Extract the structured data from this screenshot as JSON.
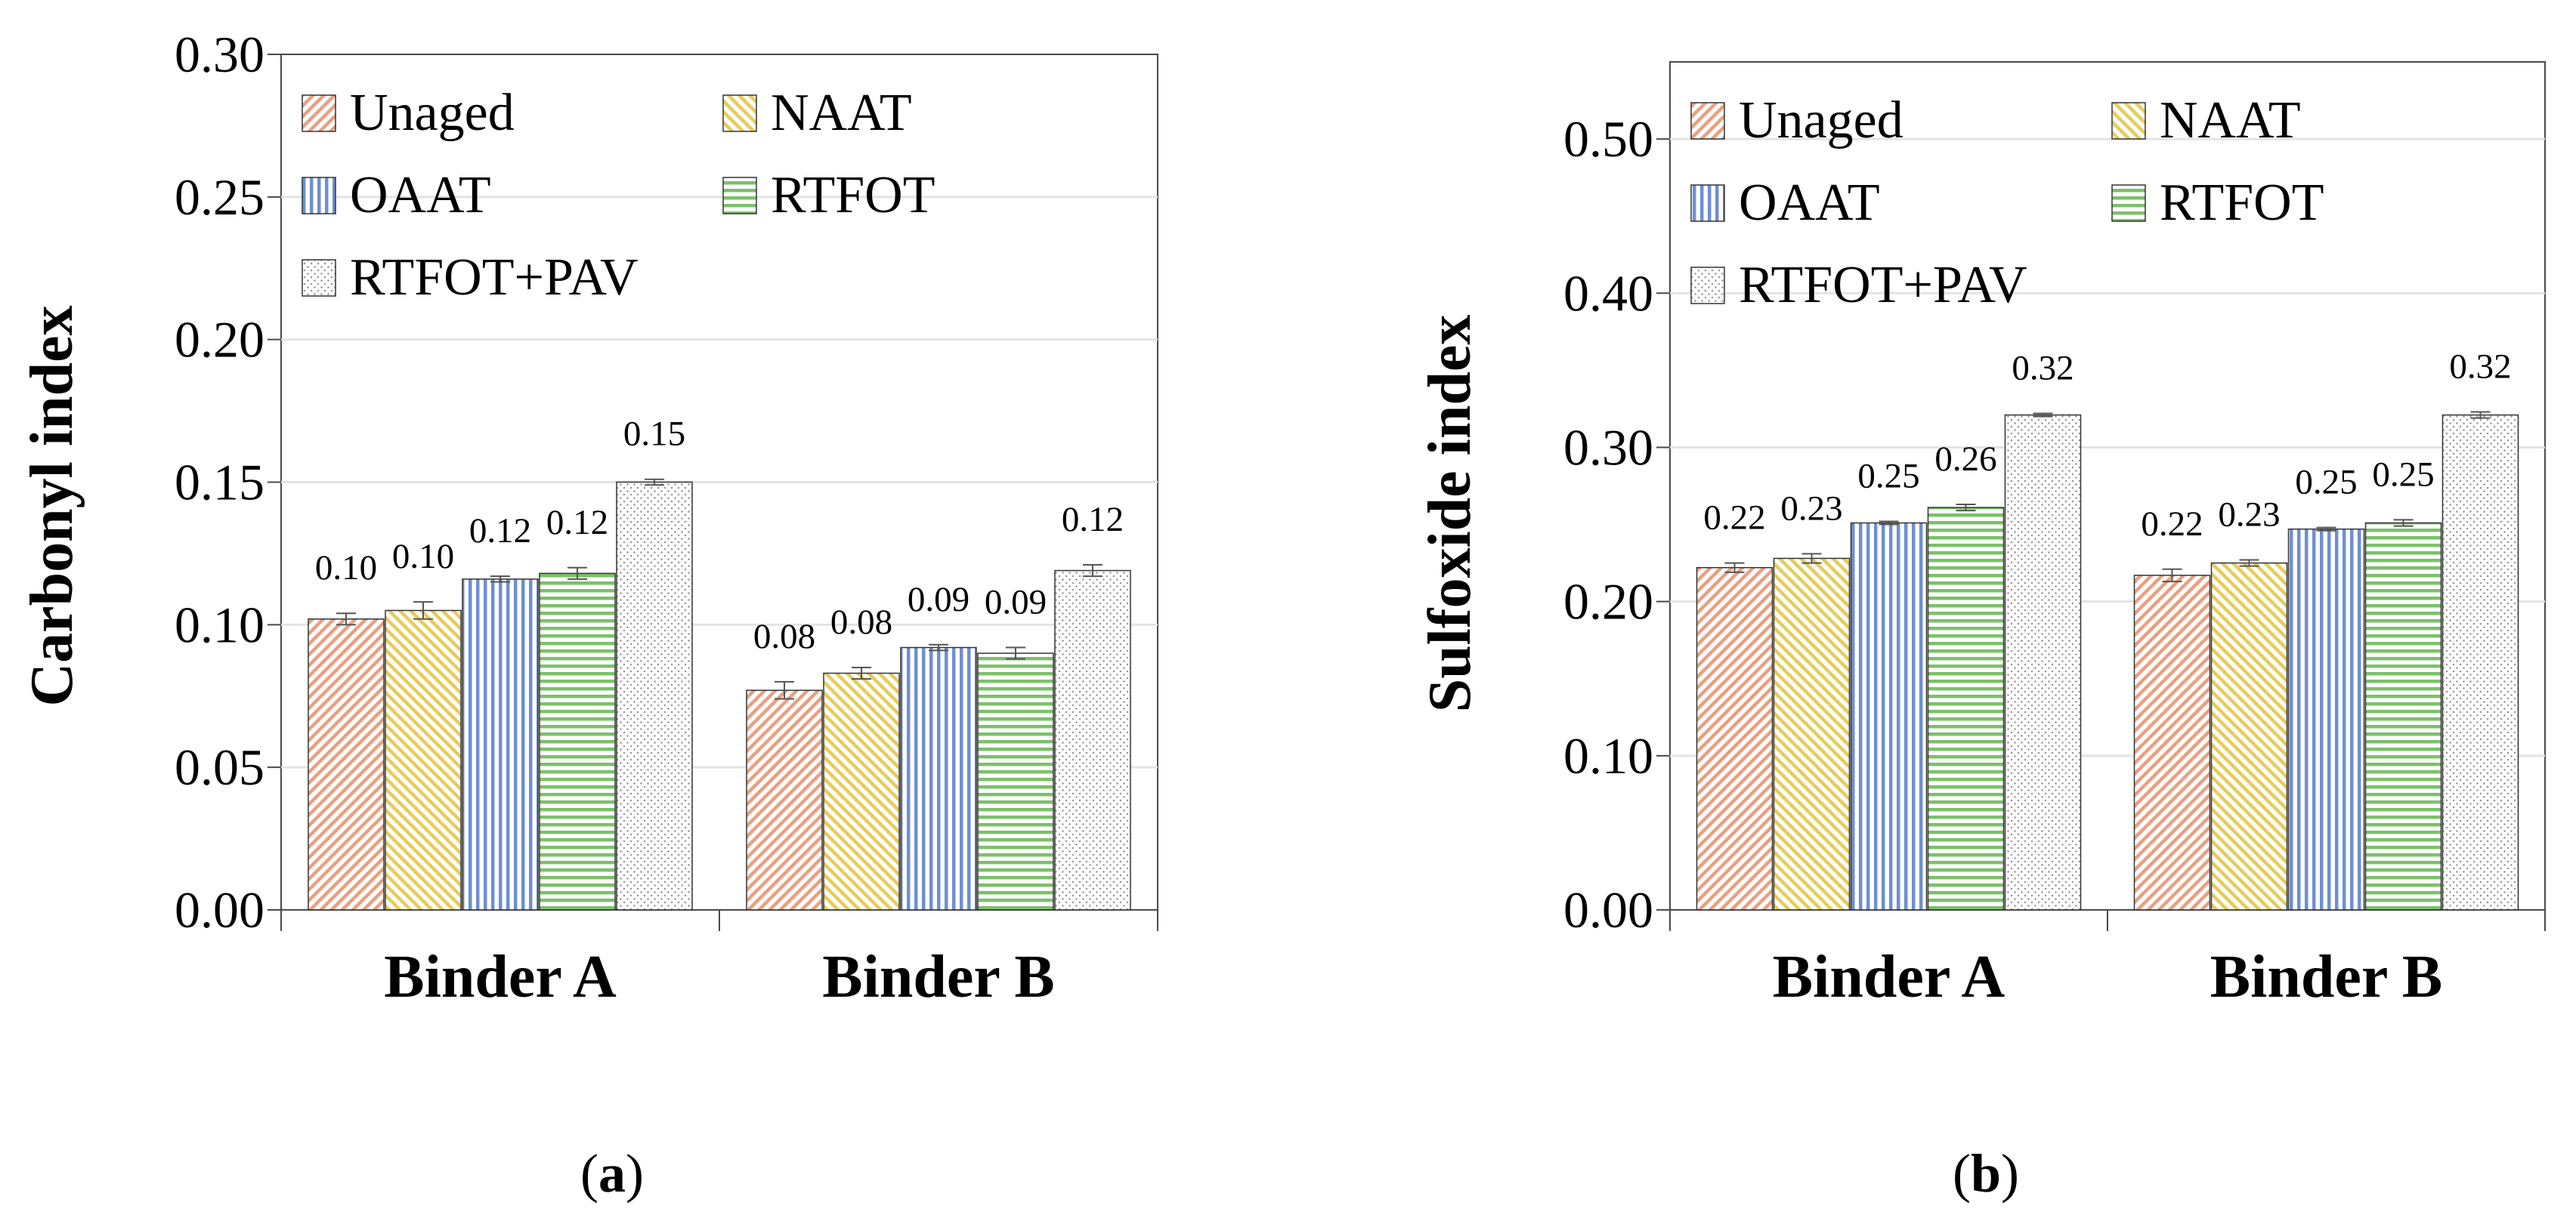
{
  "chart_data": [
    {
      "type": "bar",
      "panel_label": "a",
      "title": "",
      "xlabel": "",
      "ylabel": "Carbonyl index",
      "ylim": [
        0,
        0.3
      ],
      "yticks": [
        "0.00",
        "0.05",
        "0.10",
        "0.15",
        "0.20",
        "0.25",
        "0.30"
      ],
      "grid": true,
      "legend_position": "top-left",
      "categories": [
        "Binder A",
        "Binder B"
      ],
      "series": [
        {
          "name": "Unaged",
          "values": [
            0.102,
            0.077
          ],
          "errors": [
            0.002,
            0.003
          ],
          "labels": [
            "0.10",
            "0.08"
          ],
          "color": "#e8a080",
          "pattern": "diag-up"
        },
        {
          "name": "NAAT",
          "values": [
            0.105,
            0.083
          ],
          "errors": [
            0.003,
            0.002
          ],
          "labels": [
            "0.10",
            "0.08"
          ],
          "color": "#e6cc5a",
          "pattern": "diag-down"
        },
        {
          "name": "OAAT",
          "values": [
            0.116,
            0.092
          ],
          "errors": [
            0.001,
            0.001
          ],
          "labels": [
            "0.12",
            "0.09"
          ],
          "color": "#6f8fcf",
          "pattern": "vertical"
        },
        {
          "name": "RTFOT",
          "values": [
            0.118,
            0.09
          ],
          "errors": [
            0.002,
            0.002
          ],
          "labels": [
            "0.12",
            "0.09"
          ],
          "color": "#7cc06a",
          "pattern": "horizontal"
        },
        {
          "name": "RTFOT+PAV",
          "values": [
            0.15,
            0.119
          ],
          "errors": [
            0.001,
            0.002
          ],
          "labels": [
            "0.15",
            "0.12"
          ],
          "color": "#9a9a9a",
          "pattern": "dots"
        }
      ]
    },
    {
      "type": "bar",
      "panel_label": "b",
      "title": "",
      "xlabel": "",
      "ylabel": "Sulfoxide index",
      "ylim": [
        0,
        0.55
      ],
      "yticks": [
        "0.00",
        "0.10",
        "0.20",
        "0.30",
        "0.40",
        "0.50"
      ],
      "grid": true,
      "legend_position": "top-left",
      "categories": [
        "Binder A",
        "Binder B"
      ],
      "series": [
        {
          "name": "Unaged",
          "values": [
            0.222,
            0.217
          ],
          "errors": [
            0.003,
            0.004
          ],
          "labels": [
            "0.22",
            "0.22"
          ],
          "color": "#e8a080",
          "pattern": "diag-up"
        },
        {
          "name": "NAAT",
          "values": [
            0.228,
            0.225
          ],
          "errors": [
            0.003,
            0.002
          ],
          "labels": [
            "0.23",
            "0.23"
          ],
          "color": "#e6cc5a",
          "pattern": "diag-down"
        },
        {
          "name": "OAAT",
          "values": [
            0.251,
            0.247
          ],
          "errors": [
            0.001,
            0.001
          ],
          "labels": [
            "0.25",
            "0.25"
          ],
          "color": "#6f8fcf",
          "pattern": "vertical"
        },
        {
          "name": "RTFOT",
          "values": [
            0.261,
            0.251
          ],
          "errors": [
            0.002,
            0.002
          ],
          "labels": [
            "0.26",
            "0.25"
          ],
          "color": "#7cc06a",
          "pattern": "horizontal"
        },
        {
          "name": "RTFOT+PAV",
          "values": [
            0.321,
            0.321
          ],
          "errors": [
            0.001,
            0.002
          ],
          "labels": [
            "0.32",
            "0.32"
          ],
          "color": "#9a9a9a",
          "pattern": "dots"
        }
      ]
    }
  ]
}
